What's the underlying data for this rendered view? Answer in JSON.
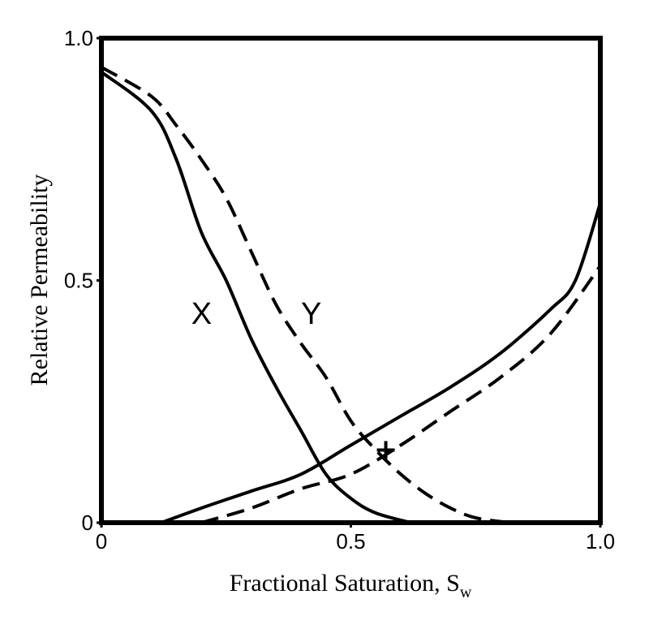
{
  "chart_data": {
    "type": "line",
    "xlabel": "Fractional Saturation, S",
    "xlabel_subscript": "w",
    "ylabel": "Relative Permeability",
    "xlim": [
      0,
      1
    ],
    "ylim": [
      0,
      1
    ],
    "x_ticks": [
      {
        "value": 0,
        "label": "0"
      },
      {
        "value": 0.5,
        "label": "0.5"
      },
      {
        "value": 1.0,
        "label": "1.0"
      }
    ],
    "y_ticks": [
      {
        "value": 0,
        "label": "0"
      },
      {
        "value": 0.5,
        "label": "0.5"
      },
      {
        "value": 1.0,
        "label": "1.0"
      }
    ],
    "grid": false,
    "series": [
      {
        "style": "solid",
        "points": [
          [
            0,
            0.93
          ],
          [
            0.1,
            0.85
          ],
          [
            0.15,
            0.75
          ],
          [
            0.2,
            0.6
          ],
          [
            0.25,
            0.5
          ],
          [
            0.3,
            0.38
          ],
          [
            0.35,
            0.28
          ],
          [
            0.4,
            0.19
          ],
          [
            0.45,
            0.1
          ],
          [
            0.5,
            0.05
          ],
          [
            0.55,
            0.02
          ],
          [
            0.62,
            0.0
          ]
        ]
      },
      {
        "style": "dashed",
        "points": [
          [
            0,
            0.94
          ],
          [
            0.1,
            0.88
          ],
          [
            0.15,
            0.82
          ],
          [
            0.2,
            0.75
          ],
          [
            0.25,
            0.67
          ],
          [
            0.3,
            0.56
          ],
          [
            0.35,
            0.45
          ],
          [
            0.4,
            0.37
          ],
          [
            0.45,
            0.3
          ],
          [
            0.5,
            0.21
          ],
          [
            0.55,
            0.15
          ],
          [
            0.6,
            0.1
          ],
          [
            0.65,
            0.06
          ],
          [
            0.7,
            0.03
          ],
          [
            0.75,
            0.01
          ],
          [
            0.82,
            0.0
          ]
        ]
      },
      {
        "style": "solid",
        "points": [
          [
            0.12,
            0.0
          ],
          [
            0.2,
            0.03
          ],
          [
            0.3,
            0.065
          ],
          [
            0.4,
            0.1
          ],
          [
            0.5,
            0.16
          ],
          [
            0.6,
            0.22
          ],
          [
            0.7,
            0.28
          ],
          [
            0.8,
            0.35
          ],
          [
            0.9,
            0.44
          ],
          [
            0.95,
            0.5
          ],
          [
            1.0,
            0.66
          ]
        ]
      },
      {
        "style": "dashed",
        "points": [
          [
            0.2,
            0.0
          ],
          [
            0.3,
            0.03
          ],
          [
            0.4,
            0.07
          ],
          [
            0.5,
            0.1
          ],
          [
            0.6,
            0.16
          ],
          [
            0.7,
            0.23
          ],
          [
            0.8,
            0.3
          ],
          [
            0.9,
            0.39
          ],
          [
            1.0,
            0.53
          ]
        ]
      }
    ],
    "annotations": [
      {
        "text": "X",
        "x": 0.18,
        "y": 0.41
      },
      {
        "text": "Y",
        "x": 0.4,
        "y": 0.41
      }
    ],
    "markers": [
      {
        "symbol": "+",
        "x": 0.57,
        "y": 0.15
      }
    ]
  }
}
